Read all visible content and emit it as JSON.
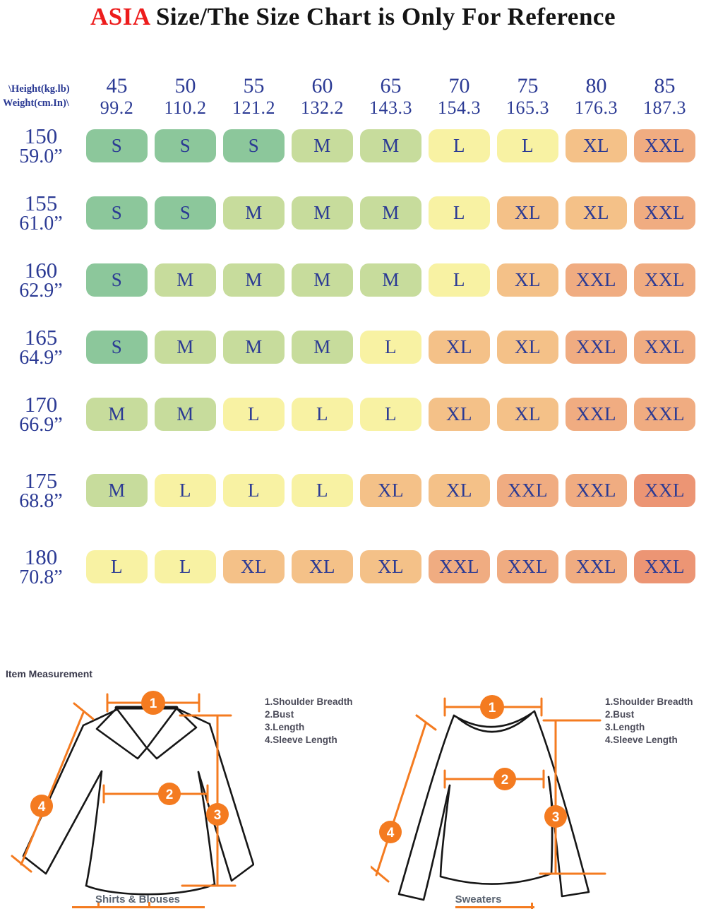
{
  "title": {
    "brand": "ASIA",
    "rest": " Size/The Size Chart is Only For Reference"
  },
  "colors": {
    "s": "#8cc79b",
    "m": "#c7dc9c",
    "l": "#f8f2a3",
    "xl": "#f4c188",
    "xxl": "#f0ac81",
    "xxl_hot": "#ec9574",
    "text_navy": "#2b3a94",
    "accent_red": "#ed1c1c",
    "accent_orange": "#f47b20"
  },
  "chart_data": {
    "type": "table",
    "corner": {
      "line1": "\\Height(kg.lb)",
      "line2": "Weight(cm.In)\\"
    },
    "columns": [
      {
        "kg": "45",
        "lb": "99.2"
      },
      {
        "kg": "50",
        "lb": "110.2"
      },
      {
        "kg": "55",
        "lb": "121.2"
      },
      {
        "kg": "60",
        "lb": "132.2"
      },
      {
        "kg": "65",
        "lb": "143.3"
      },
      {
        "kg": "70",
        "lb": "154.3"
      },
      {
        "kg": "75",
        "lb": "165.3"
      },
      {
        "kg": "80",
        "lb": "176.3"
      },
      {
        "kg": "85",
        "lb": "187.3"
      }
    ],
    "rows": [
      {
        "cm": "150",
        "inch": "59.0”",
        "cells": [
          {
            "size": "S",
            "tone": "s"
          },
          {
            "size": "S",
            "tone": "s"
          },
          {
            "size": "S",
            "tone": "s"
          },
          {
            "size": "M",
            "tone": "m"
          },
          {
            "size": "M",
            "tone": "m"
          },
          {
            "size": "L",
            "tone": "l"
          },
          {
            "size": "L",
            "tone": "l"
          },
          {
            "size": "XL",
            "tone": "xl"
          },
          {
            "size": "XXL",
            "tone": "xxl"
          }
        ]
      },
      {
        "cm": "155",
        "inch": "61.0”",
        "cells": [
          {
            "size": "S",
            "tone": "s"
          },
          {
            "size": "S",
            "tone": "s"
          },
          {
            "size": "M",
            "tone": "m"
          },
          {
            "size": "M",
            "tone": "m"
          },
          {
            "size": "M",
            "tone": "m"
          },
          {
            "size": "L",
            "tone": "l"
          },
          {
            "size": "XL",
            "tone": "xl"
          },
          {
            "size": "XL",
            "tone": "xl"
          },
          {
            "size": "XXL",
            "tone": "xxl"
          }
        ]
      },
      {
        "cm": "160",
        "inch": "62.9”",
        "cells": [
          {
            "size": "S",
            "tone": "s"
          },
          {
            "size": "M",
            "tone": "m"
          },
          {
            "size": "M",
            "tone": "m"
          },
          {
            "size": "M",
            "tone": "m"
          },
          {
            "size": "M",
            "tone": "m"
          },
          {
            "size": "L",
            "tone": "l"
          },
          {
            "size": "XL",
            "tone": "xl"
          },
          {
            "size": "XXL",
            "tone": "xxl"
          },
          {
            "size": "XXL",
            "tone": "xxl"
          }
        ]
      },
      {
        "cm": "165",
        "inch": "64.9”",
        "cells": [
          {
            "size": "S",
            "tone": "s"
          },
          {
            "size": "M",
            "tone": "m"
          },
          {
            "size": "M",
            "tone": "m"
          },
          {
            "size": "M",
            "tone": "m"
          },
          {
            "size": "L",
            "tone": "l"
          },
          {
            "size": "XL",
            "tone": "xl"
          },
          {
            "size": "XL",
            "tone": "xl"
          },
          {
            "size": "XXL",
            "tone": "xxl"
          },
          {
            "size": "XXL",
            "tone": "xxl"
          }
        ]
      },
      {
        "cm": "170",
        "inch": "66.9”",
        "cells": [
          {
            "size": "M",
            "tone": "m"
          },
          {
            "size": "M",
            "tone": "m"
          },
          {
            "size": "L",
            "tone": "l"
          },
          {
            "size": "L",
            "tone": "l"
          },
          {
            "size": "L",
            "tone": "l"
          },
          {
            "size": "XL",
            "tone": "xl"
          },
          {
            "size": "XL",
            "tone": "xl"
          },
          {
            "size": "XXL",
            "tone": "xxl"
          },
          {
            "size": "XXL",
            "tone": "xxl"
          }
        ]
      },
      {
        "cm": "175",
        "inch": "68.8”",
        "cells": [
          {
            "size": "M",
            "tone": "m"
          },
          {
            "size": "L",
            "tone": "l"
          },
          {
            "size": "L",
            "tone": "l"
          },
          {
            "size": "L",
            "tone": "l"
          },
          {
            "size": "XL",
            "tone": "xl"
          },
          {
            "size": "XL",
            "tone": "xl"
          },
          {
            "size": "XXL",
            "tone": "xxl"
          },
          {
            "size": "XXL",
            "tone": "xxl"
          },
          {
            "size": "XXL",
            "tone": "xxl_hot"
          }
        ]
      },
      {
        "cm": "180",
        "inch": "70.8”",
        "cells": [
          {
            "size": "L",
            "tone": "l"
          },
          {
            "size": "L",
            "tone": "l"
          },
          {
            "size": "XL",
            "tone": "xl"
          },
          {
            "size": "XL",
            "tone": "xl"
          },
          {
            "size": "XL",
            "tone": "xl"
          },
          {
            "size": "XXL",
            "tone": "xxl"
          },
          {
            "size": "XXL",
            "tone": "xxl"
          },
          {
            "size": "XXL",
            "tone": "xxl"
          },
          {
            "size": "XXL",
            "tone": "xxl_hot"
          }
        ]
      }
    ]
  },
  "measurement": {
    "heading": "Item Measurement",
    "legend": [
      "1.Shoulder Breadth",
      "2.Bust",
      "3.Length",
      "4.Sleeve Length"
    ],
    "markers": [
      "1",
      "2",
      "3",
      "4"
    ],
    "left_caption": "Shirts & Blouses",
    "right_caption": "Sweaters"
  }
}
